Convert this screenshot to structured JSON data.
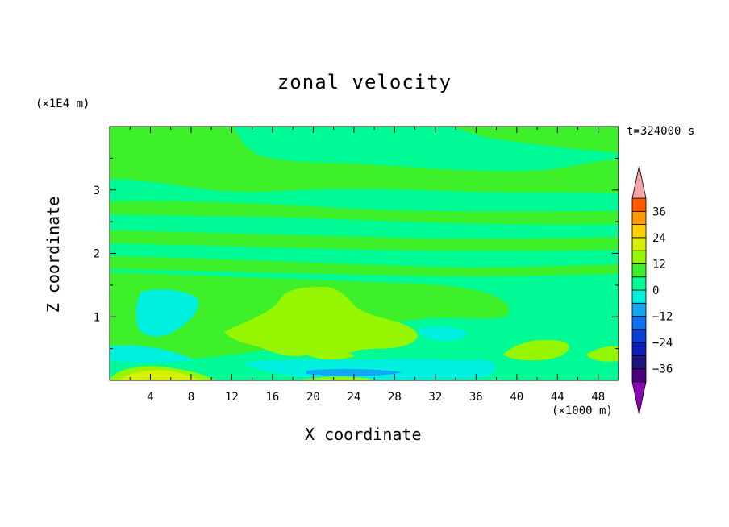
{
  "chart_data": {
    "type": "heatmap",
    "title": "zonal velocity",
    "xlabel": "X coordinate",
    "ylabel": "Z coordinate",
    "x_unit": "(×1000 m)",
    "z_unit": "(×1E4 m)",
    "time_label": "t=324000 s",
    "xlim": [
      0,
      50
    ],
    "ylim": [
      0,
      4
    ],
    "x_ticks": [
      "4",
      "8",
      "12",
      "16",
      "20",
      "24",
      "28",
      "32",
      "36",
      "40",
      "44",
      "48"
    ],
    "y_ticks": [
      "1",
      "2",
      "3"
    ],
    "colorbar": {
      "levels": [
        -42,
        -36,
        -30,
        -24,
        -18,
        -12,
        -6,
        0,
        6,
        12,
        18,
        24,
        30,
        36,
        42
      ],
      "labels": [
        "36",
        "24",
        "12",
        "0",
        "-12",
        "-24",
        "-36"
      ],
      "colors": [
        "#4b007d",
        "#20147f",
        "#0b1fb8",
        "#0a3fd8",
        "#0b6ff0",
        "#10a8f5",
        "#00f0e0",
        "#00fa96",
        "#3ef02a",
        "#96f500",
        "#d8f000",
        "#ffd000",
        "#ff9a00",
        "#ff5a00",
        "#ff1e1e"
      ],
      "extend_low_color": "#8c05b4",
      "extend_high_color": "#f5a5a5"
    },
    "field_summary": "Predominantly 0 to 6 m/s (mint) above z=1.5; bands of 6-12 (green) near z=1.7, 2.1, 2.6, 3.2; 12-18 core at x=14-30, z=0.3-1.5; -6 to 0 region x=2-10, z=0.3-1.4; -12 to -6 near surface x=18-34; 18-24 near surface x=2-8 and patch near x=42, z=0.4"
  }
}
